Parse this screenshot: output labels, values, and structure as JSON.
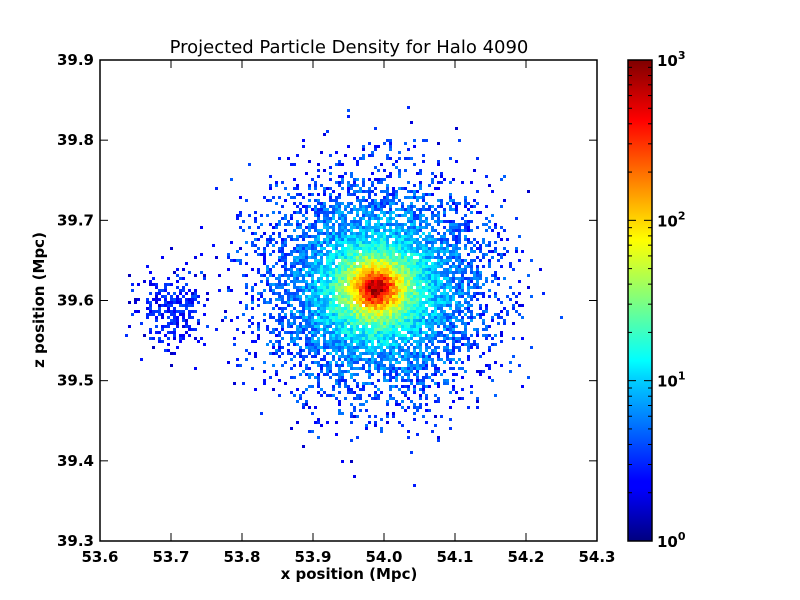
{
  "chart_data": {
    "type": "heatmap",
    "title": "Projected Particle Density for Halo 4090",
    "xlabel": "x position (Mpc)",
    "ylabel": "z position (Mpc)",
    "xlim": [
      53.6,
      54.3
    ],
    "ylim": [
      39.3,
      39.9
    ],
    "x_ticks": [
      "53.6",
      "53.7",
      "53.8",
      "53.9",
      "54.0",
      "54.1",
      "54.2",
      "54.3"
    ],
    "y_ticks": [
      "39.3",
      "39.4",
      "39.5",
      "39.6",
      "39.7",
      "39.8",
      "39.9"
    ],
    "colorbar": {
      "scale": "log",
      "range": [
        1,
        1000
      ],
      "ticks": [
        {
          "base": "10",
          "exp": "0",
          "value": 1
        },
        {
          "base": "10",
          "exp": "1",
          "value": 10
        },
        {
          "base": "10",
          "exp": "2",
          "value": 100
        },
        {
          "base": "10",
          "exp": "3",
          "value": 1000
        }
      ],
      "colormap": "jet"
    },
    "halo": {
      "center_x": 53.987,
      "center_z": 39.617,
      "peak_density": 1000,
      "core_radius": 0.028,
      "extent_radius": 0.22,
      "satellite": {
        "x": 53.7,
        "z": 39.59,
        "peak_density": 4
      }
    }
  }
}
